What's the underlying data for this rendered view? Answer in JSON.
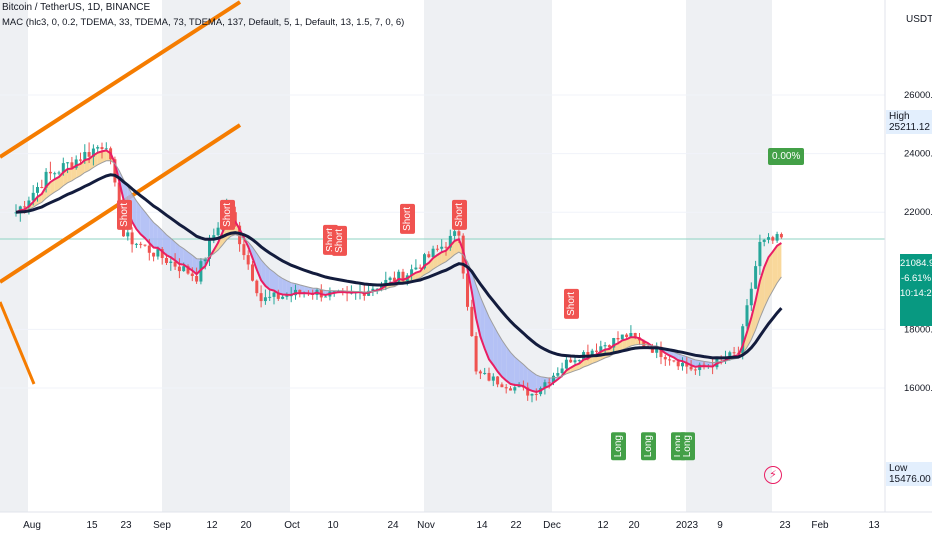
{
  "header": {
    "symbol_line": "Bitcoin / TetherUS, 1D, BINANCE",
    "indicator_line": "MAC (hlc3, 0, 0.2, TDEMA, 33, TDEMA, 73, TDEMA, 137, Default, 5, 1, Default, 13, 1.5, 7, 0, 6)"
  },
  "price_axis": {
    "currency": "USDT",
    "ticks": [
      "26000.00",
      "24000.00",
      "22000.00",
      "18000.00",
      "16000.00"
    ],
    "high_label": "High",
    "high_value": "25211.12",
    "low_label": "Low",
    "low_value": "15476.00",
    "last_price": "21084.90",
    "change": "-6.61%",
    "countdown": "10:14:21",
    "target_label": "0.00%"
  },
  "time_axis": {
    "labels": [
      "Aug",
      "15",
      "23",
      "Sep",
      "12",
      "20",
      "Oct",
      "10",
      "24",
      "Nov",
      "14",
      "22",
      "Dec",
      "12",
      "20",
      "2023",
      "9",
      "23",
      "Feb",
      "13"
    ]
  },
  "colors": {
    "up": "#26a69a",
    "down": "#ef5350",
    "slow_ma": "#131c3d",
    "mid_ma": "#9e9e9e",
    "channel": "#f57c00",
    "bear_fill": "#f8d18a",
    "bull_fill": "#a9b8f5",
    "short_tag": "#f05350",
    "long_tag": "#43a047",
    "weekend_band": "#eef0f3"
  },
  "chart_data": {
    "type": "candlestick",
    "title": "Bitcoin / TetherUS, 1D, BINANCE",
    "y_range": [
      15000,
      28000
    ],
    "x_range": [
      "2022-07-25",
      "2023-02-20"
    ],
    "price_estimates": [
      {
        "date": "2022-07-25",
        "close": 22000
      },
      {
        "date": "2022-08-01",
        "close": 23200
      },
      {
        "date": "2022-08-15",
        "close": 24400
      },
      {
        "date": "2022-08-19",
        "close": 21200
      },
      {
        "date": "2022-09-05",
        "close": 19800
      },
      {
        "date": "2022-09-12",
        "close": 22300
      },
      {
        "date": "2022-09-20",
        "close": 19000
      },
      {
        "date": "2022-10-01",
        "close": 19300
      },
      {
        "date": "2022-10-10",
        "close": 19100
      },
      {
        "date": "2022-10-24",
        "close": 19900
      },
      {
        "date": "2022-11-05",
        "close": 21300
      },
      {
        "date": "2022-11-09",
        "close": 16500
      },
      {
        "date": "2022-11-22",
        "close": 15800
      },
      {
        "date": "2022-12-01",
        "close": 17000
      },
      {
        "date": "2022-12-14",
        "close": 17800
      },
      {
        "date": "2022-12-30",
        "close": 16600
      },
      {
        "date": "2023-01-09",
        "close": 17200
      },
      {
        "date": "2023-01-14",
        "close": 20900
      },
      {
        "date": "2023-01-19",
        "close": 21084.9
      }
    ],
    "signals": [
      {
        "label": "Short",
        "date": "2022-08-19"
      },
      {
        "label": "Short",
        "date": "2022-09-12"
      },
      {
        "label": "Short",
        "date": "2022-10-06"
      },
      {
        "label": "Short",
        "date": "2022-10-08"
      },
      {
        "label": "Short",
        "date": "2022-10-24"
      },
      {
        "label": "Short",
        "date": "2022-11-05"
      },
      {
        "label": "Short",
        "date": "2022-12-01"
      },
      {
        "label": "Long",
        "date": "2022-12-12"
      },
      {
        "label": "Long",
        "date": "2022-12-19"
      },
      {
        "label": "Long",
        "date": "2022-12-26"
      },
      {
        "label": "Long",
        "date": "2022-12-28"
      }
    ],
    "series": [
      {
        "name": "Price"
      },
      {
        "name": "TDEMA 33"
      },
      {
        "name": "TDEMA 73"
      },
      {
        "name": "TDEMA 137"
      }
    ],
    "grid": true
  }
}
